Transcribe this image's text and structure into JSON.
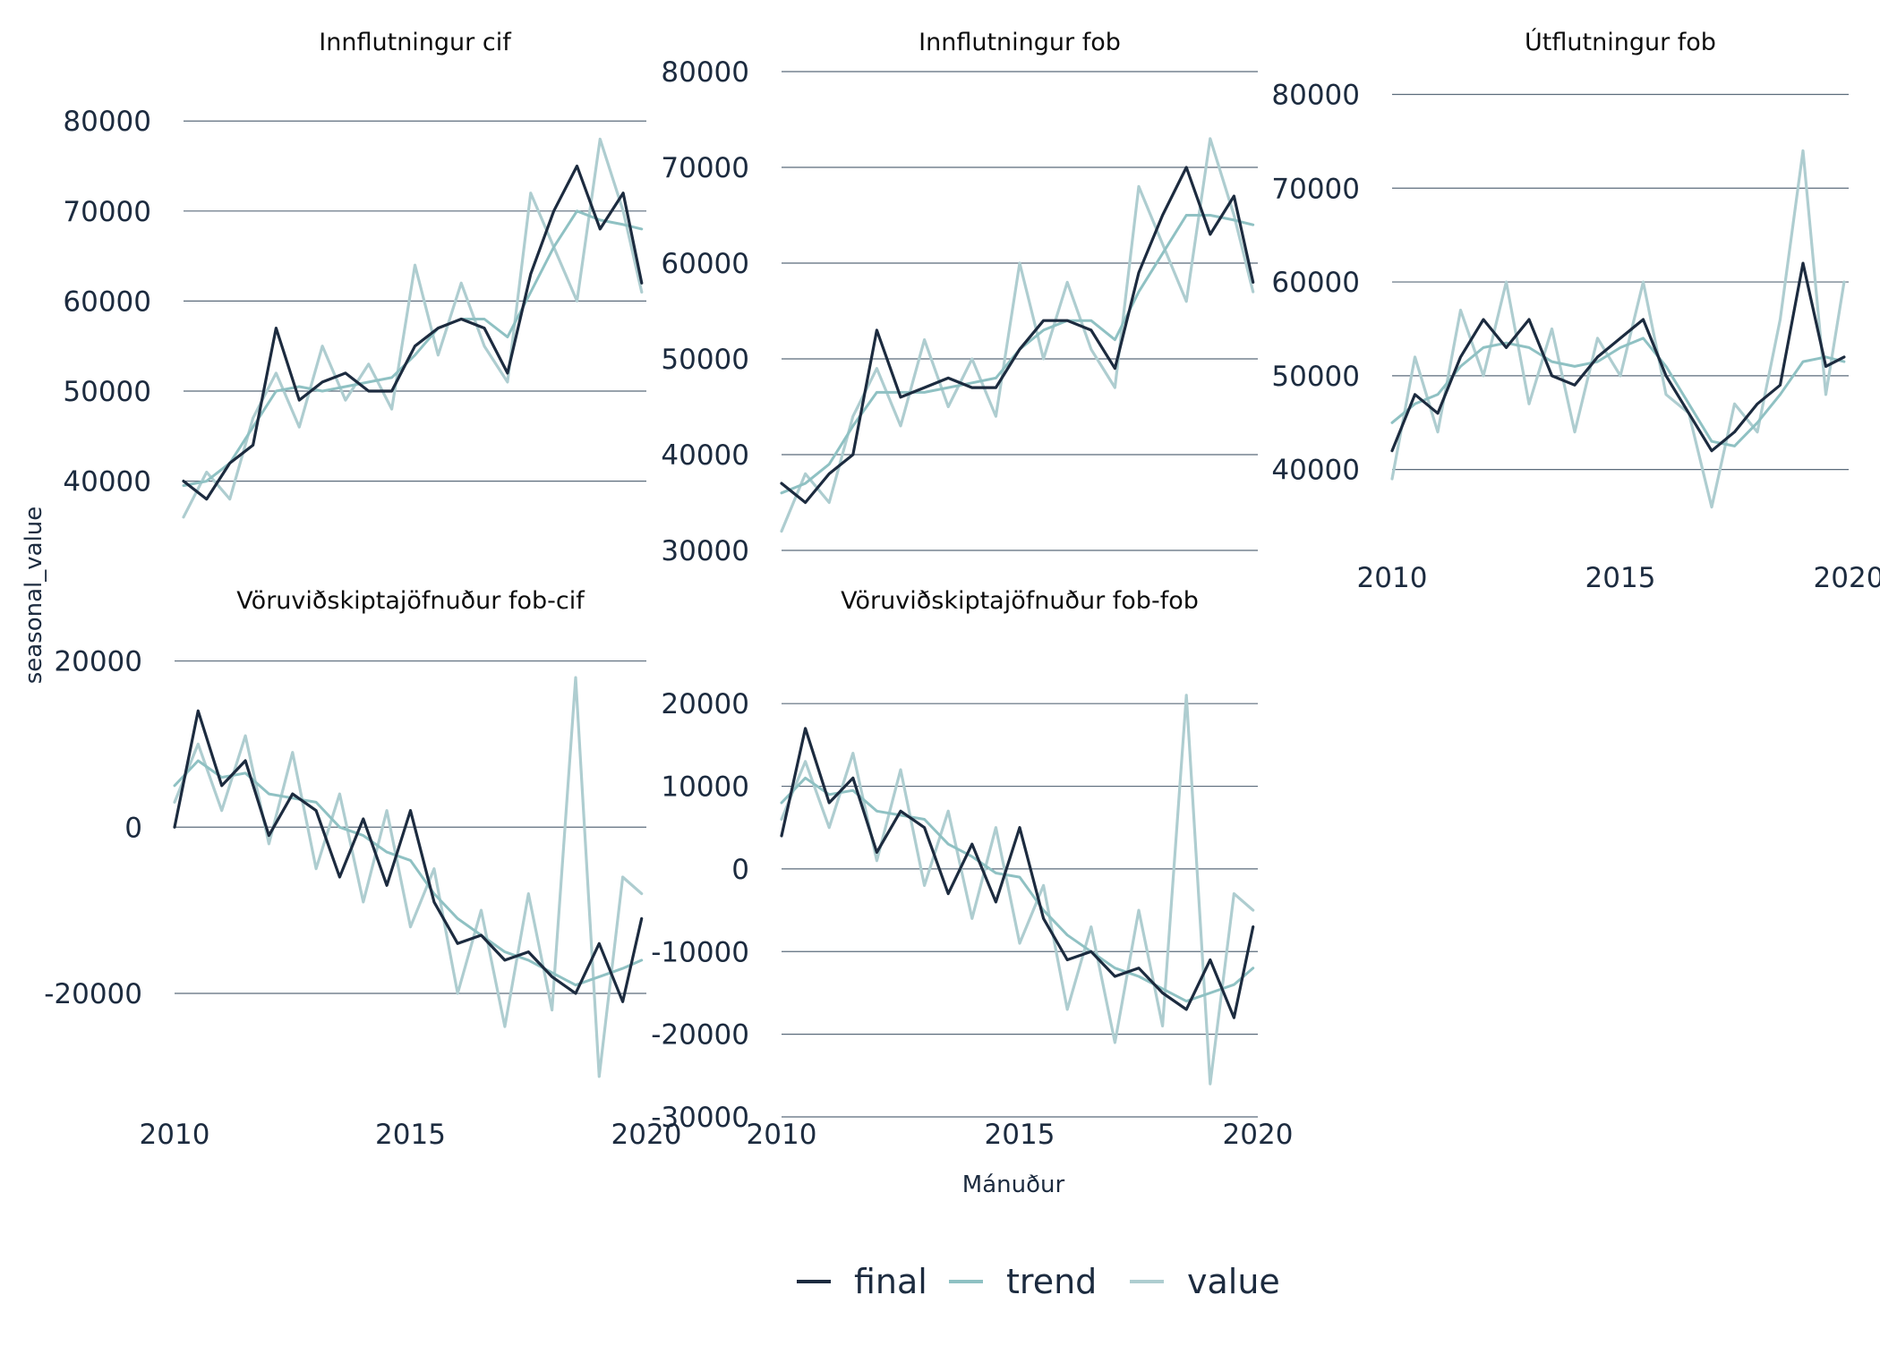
{
  "chart_data": {
    "type": "line",
    "xlabel": "Mánuður",
    "ylabel": "seasonal_value",
    "legend": {
      "position": "bottom",
      "entries": [
        {
          "name": "final",
          "color": "#1c2b3f"
        },
        {
          "name": "trend",
          "color": "#8fc1c3"
        },
        {
          "name": "value",
          "color": "#aecdd0"
        }
      ]
    },
    "grid": "horizontal",
    "panels": [
      {
        "title": "Innflutningur cif",
        "xlim": [
          2010,
          2020
        ],
        "xticks": [
          2010,
          2015,
          2020
        ],
        "ylim": [
          33000,
          84000
        ],
        "yticks": [
          40000,
          50000,
          60000,
          70000,
          80000
        ],
        "series": [
          {
            "name": "final",
            "x": [
              2010,
              2010.5,
              2011,
              2011.5,
              2012,
              2012.5,
              2013,
              2013.5,
              2014,
              2014.5,
              2015,
              2015.5,
              2016,
              2016.5,
              2017,
              2017.5,
              2018,
              2018.5,
              2019,
              2019.5,
              2019.9
            ],
            "values": [
              40000,
              38000,
              42000,
              44000,
              57000,
              49000,
              51000,
              52000,
              50000,
              50000,
              55000,
              57000,
              58000,
              57000,
              52000,
              63000,
              70000,
              75000,
              68000,
              72000,
              62000
            ]
          },
          {
            "name": "trend",
            "x": [
              2010,
              2010.5,
              2011,
              2011.5,
              2012,
              2012.5,
              2013,
              2013.5,
              2014,
              2014.5,
              2015,
              2015.5,
              2016,
              2016.5,
              2017,
              2017.5,
              2018,
              2018.5,
              2019,
              2019.5,
              2019.9
            ],
            "values": [
              39500,
              40000,
              42000,
              46000,
              50000,
              50500,
              50000,
              50500,
              51000,
              51500,
              54000,
              57000,
              58000,
              58000,
              56000,
              61000,
              66000,
              70000,
              69000,
              68500,
              68000
            ]
          },
          {
            "name": "value",
            "x": [
              2010,
              2010.5,
              2011,
              2011.5,
              2012,
              2012.5,
              2013,
              2013.5,
              2014,
              2014.5,
              2015,
              2015.5,
              2016,
              2016.5,
              2017,
              2017.5,
              2018,
              2018.5,
              2019,
              2019.5,
              2019.9
            ],
            "values": [
              36000,
              41000,
              38000,
              47000,
              52000,
              46000,
              55000,
              49000,
              53000,
              48000,
              64000,
              54000,
              62000,
              55000,
              51000,
              72000,
              66000,
              60000,
              78000,
              70000,
              61000
            ]
          }
        ]
      },
      {
        "title": "Innflutningur fob",
        "xlim": [
          2010,
          2020
        ],
        "xticks": [
          2010,
          2015,
          2020
        ],
        "ylim": [
          30000,
          80000
        ],
        "yticks": [
          30000,
          40000,
          50000,
          60000,
          70000,
          80000
        ],
        "series": [
          {
            "name": "final",
            "x": [
              2010,
              2010.5,
              2011,
              2011.5,
              2012,
              2012.5,
              2013,
              2013.5,
              2014,
              2014.5,
              2015,
              2015.5,
              2016,
              2016.5,
              2017,
              2017.5,
              2018,
              2018.5,
              2019,
              2019.5,
              2019.9
            ],
            "values": [
              37000,
              35000,
              38000,
              40000,
              53000,
              46000,
              47000,
              48000,
              47000,
              47000,
              51000,
              54000,
              54000,
              53000,
              49000,
              59000,
              65000,
              70000,
              63000,
              67000,
              58000
            ]
          },
          {
            "name": "trend",
            "x": [
              2010,
              2010.5,
              2011,
              2011.5,
              2012,
              2012.5,
              2013,
              2013.5,
              2014,
              2014.5,
              2015,
              2015.5,
              2016,
              2016.5,
              2017,
              2017.5,
              2018,
              2018.5,
              2019,
              2019.5,
              2019.9
            ],
            "values": [
              36000,
              37000,
              39000,
              43000,
              46500,
              46500,
              46500,
              47000,
              47500,
              48000,
              51000,
              53000,
              54000,
              54000,
              52000,
              57000,
              61000,
              65000,
              65000,
              64500,
              64000
            ]
          },
          {
            "name": "value",
            "x": [
              2010,
              2010.5,
              2011,
              2011.5,
              2012,
              2012.5,
              2013,
              2013.5,
              2014,
              2014.5,
              2015,
              2015.5,
              2016,
              2016.5,
              2017,
              2017.5,
              2018,
              2018.5,
              2019,
              2019.5,
              2019.9
            ],
            "values": [
              32000,
              38000,
              35000,
              44000,
              49000,
              43000,
              52000,
              45000,
              50000,
              44000,
              60000,
              50000,
              58000,
              51000,
              47000,
              68000,
              62000,
              56000,
              73000,
              65000,
              57000
            ]
          }
        ]
      },
      {
        "title": "Útflutningur fob",
        "xlim": [
          2010,
          2020
        ],
        "xticks": [
          2010,
          2015,
          2020
        ],
        "ylim": [
          33000,
          81000
        ],
        "yticks": [
          40000,
          50000,
          60000,
          70000,
          80000
        ],
        "series": [
          {
            "name": "final",
            "x": [
              2010,
              2010.5,
              2011,
              2011.5,
              2012,
              2012.5,
              2013,
              2013.5,
              2014,
              2014.5,
              2015,
              2015.5,
              2016,
              2016.5,
              2017,
              2017.5,
              2018,
              2018.5,
              2019,
              2019.5,
              2019.9
            ],
            "values": [
              42000,
              48000,
              46000,
              52000,
              56000,
              53000,
              56000,
              50000,
              49000,
              52000,
              54000,
              56000,
              50000,
              46000,
              42000,
              44000,
              47000,
              49000,
              62000,
              51000,
              52000
            ]
          },
          {
            "name": "trend",
            "x": [
              2010,
              2010.5,
              2011,
              2011.5,
              2012,
              2012.5,
              2013,
              2013.5,
              2014,
              2014.5,
              2015,
              2015.5,
              2016,
              2016.5,
              2017,
              2017.5,
              2018,
              2018.5,
              2019,
              2019.5,
              2019.9
            ],
            "values": [
              45000,
              47000,
              48000,
              51000,
              53000,
              53500,
              53000,
              51500,
              51000,
              51500,
              53000,
              54000,
              51000,
              47000,
              43000,
              42500,
              45000,
              48000,
              51500,
              52000,
              51500
            ]
          },
          {
            "name": "value",
            "x": [
              2010,
              2010.5,
              2011,
              2011.5,
              2012,
              2012.5,
              2013,
              2013.5,
              2014,
              2014.5,
              2015,
              2015.5,
              2016,
              2016.5,
              2017,
              2017.5,
              2018,
              2018.5,
              2019,
              2019.5,
              2019.9
            ],
            "values": [
              39000,
              52000,
              44000,
              57000,
              50000,
              60000,
              47000,
              55000,
              44000,
              54000,
              50000,
              60000,
              48000,
              46000,
              36000,
              47000,
              44000,
              56000,
              74000,
              48000,
              60000
            ]
          }
        ]
      },
      {
        "title": "Vöruviðskiptajöfnuður fob-cif",
        "xlim": [
          2010,
          2020
        ],
        "xticks": [
          2010,
          2015,
          2020
        ],
        "ylim": [
          -34000,
          22000
        ],
        "yticks": [
          -20000,
          0,
          20000
        ],
        "series": [
          {
            "name": "final",
            "x": [
              2010,
              2010.5,
              2011,
              2011.5,
              2012,
              2012.5,
              2013,
              2013.5,
              2014,
              2014.5,
              2015,
              2015.5,
              2016,
              2016.5,
              2017,
              2017.5,
              2018,
              2018.5,
              2019,
              2019.5,
              2019.9
            ],
            "values": [
              0,
              14000,
              5000,
              8000,
              -1000,
              4000,
              2000,
              -6000,
              1000,
              -7000,
              2000,
              -9000,
              -14000,
              -13000,
              -16000,
              -15000,
              -18000,
              -20000,
              -14000,
              -21000,
              -11000
            ]
          },
          {
            "name": "trend",
            "x": [
              2010,
              2010.5,
              2011,
              2011.5,
              2012,
              2012.5,
              2013,
              2013.5,
              2014,
              2014.5,
              2015,
              2015.5,
              2016,
              2016.5,
              2017,
              2017.5,
              2018,
              2018.5,
              2019,
              2019.5,
              2019.9
            ],
            "values": [
              5000,
              8000,
              6000,
              6500,
              4000,
              3500,
              3000,
              0,
              -1000,
              -3000,
              -4000,
              -8000,
              -11000,
              -13000,
              -15000,
              -16000,
              -17500,
              -19000,
              -18000,
              -17000,
              -16000
            ]
          },
          {
            "name": "value",
            "x": [
              2010,
              2010.5,
              2011,
              2011.5,
              2012,
              2012.5,
              2013,
              2013.5,
              2014,
              2014.5,
              2015,
              2015.5,
              2016,
              2016.5,
              2017,
              2017.5,
              2018,
              2018.5,
              2019,
              2019.5,
              2019.9
            ],
            "values": [
              3000,
              10000,
              2000,
              11000,
              -2000,
              9000,
              -5000,
              4000,
              -9000,
              2000,
              -12000,
              -5000,
              -20000,
              -10000,
              -24000,
              -8000,
              -22000,
              18000,
              -30000,
              -6000,
              -8000
            ]
          }
        ]
      },
      {
        "title": "Vöruviðskiptajöfnuður fob-fob",
        "xlim": [
          2010,
          2020
        ],
        "xticks": [
          2010,
          2015,
          2020
        ],
        "ylim": [
          -30000,
          25000
        ],
        "yticks": [
          -30000,
          -20000,
          -10000,
          0,
          10000,
          20000
        ],
        "series": [
          {
            "name": "final",
            "x": [
              2010,
              2010.5,
              2011,
              2011.5,
              2012,
              2012.5,
              2013,
              2013.5,
              2014,
              2014.5,
              2015,
              2015.5,
              2016,
              2016.5,
              2017,
              2017.5,
              2018,
              2018.5,
              2019,
              2019.5,
              2019.9
            ],
            "values": [
              4000,
              17000,
              8000,
              11000,
              2000,
              7000,
              5000,
              -3000,
              3000,
              -4000,
              5000,
              -6000,
              -11000,
              -10000,
              -13000,
              -12000,
              -15000,
              -17000,
              -11000,
              -18000,
              -7000
            ]
          },
          {
            "name": "trend",
            "x": [
              2010,
              2010.5,
              2011,
              2011.5,
              2012,
              2012.5,
              2013,
              2013.5,
              2014,
              2014.5,
              2015,
              2015.5,
              2016,
              2016.5,
              2017,
              2017.5,
              2018,
              2018.5,
              2019,
              2019.5,
              2019.9
            ],
            "values": [
              8000,
              11000,
              9000,
              9500,
              7000,
              6500,
              6000,
              3000,
              1500,
              -500,
              -1000,
              -5000,
              -8000,
              -10000,
              -12000,
              -13000,
              -14500,
              -16000,
              -15000,
              -14000,
              -12000
            ]
          },
          {
            "name": "value",
            "x": [
              2010,
              2010.5,
              2011,
              2011.5,
              2012,
              2012.5,
              2013,
              2013.5,
              2014,
              2014.5,
              2015,
              2015.5,
              2016,
              2016.5,
              2017,
              2017.5,
              2018,
              2018.5,
              2019,
              2019.5,
              2019.9
            ],
            "values": [
              6000,
              13000,
              5000,
              14000,
              1000,
              12000,
              -2000,
              7000,
              -6000,
              5000,
              -9000,
              -2000,
              -17000,
              -7000,
              -21000,
              -5000,
              -19000,
              21000,
              -26000,
              -3000,
              -5000
            ]
          }
        ]
      }
    ]
  }
}
